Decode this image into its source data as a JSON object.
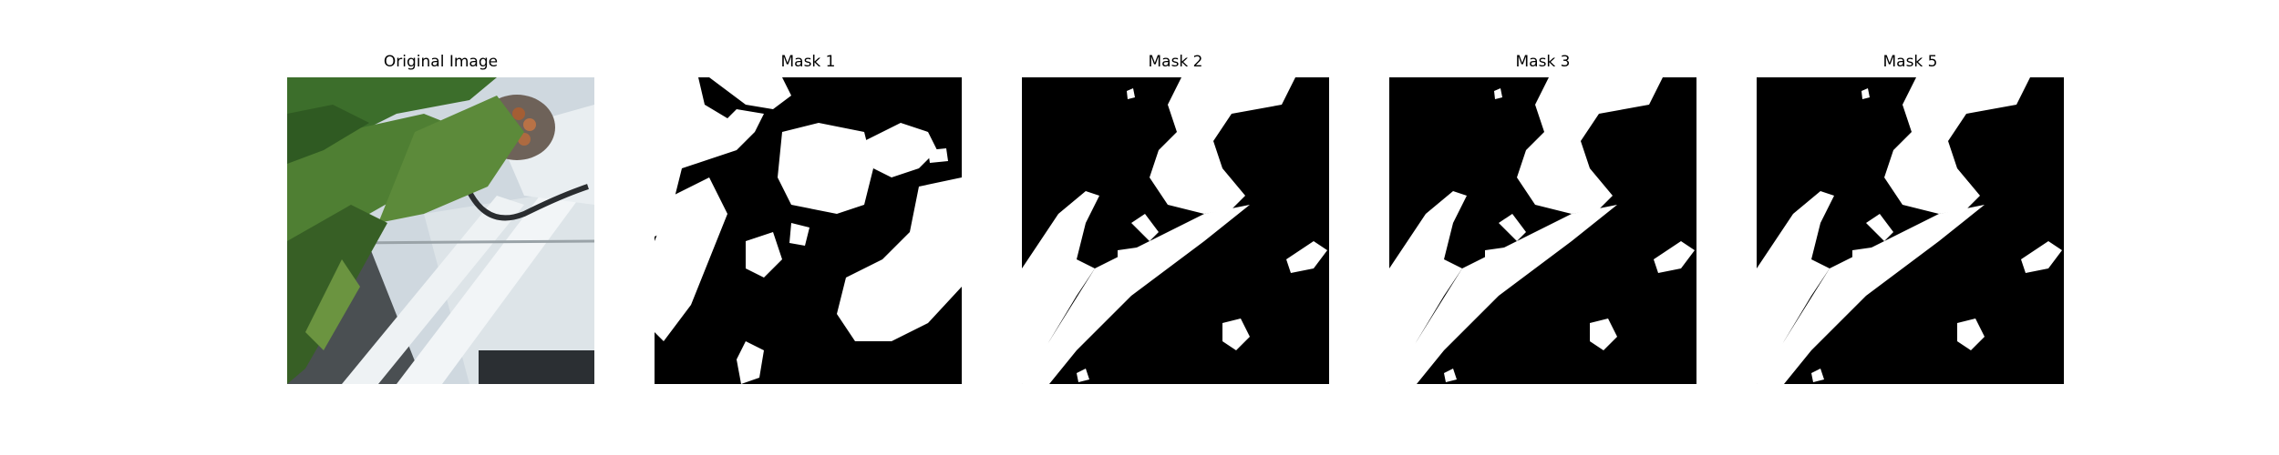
{
  "panels": [
    {
      "title": "Original Image"
    },
    {
      "title": "Mask 1"
    },
    {
      "title": "Mask 2"
    },
    {
      "title": "Mask 3"
    },
    {
      "title": "Mask 5"
    }
  ],
  "colors": {
    "background": "#ffffff",
    "mask_foreground": "#ffffff",
    "mask_background": "#000000",
    "leaf_green": "#3f6b2a",
    "pipe_white": "#e6ecf0"
  }
}
